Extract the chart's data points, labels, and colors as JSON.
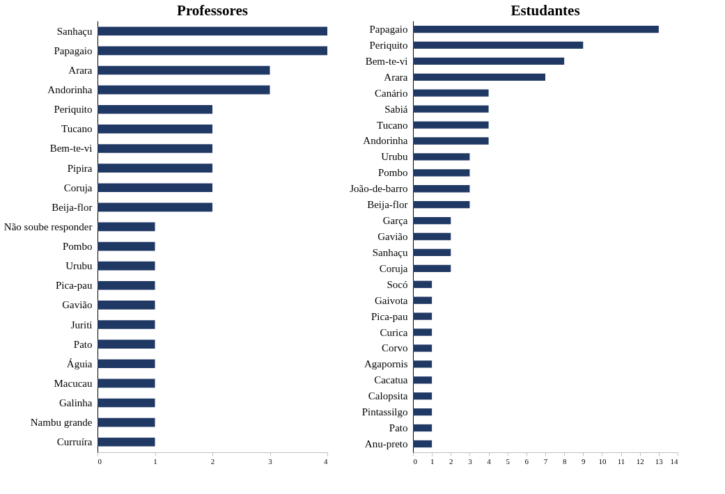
{
  "chart_data": [
    {
      "type": "bar",
      "orientation": "horizontal",
      "title": "Professores",
      "categories": [
        "Sanhaçu",
        "Papagaio",
        "Arara",
        "Andorinha",
        "Periquito",
        "Tucano",
        "Bem-te-vi",
        "Pipira",
        "Coruja",
        "Beija-flor",
        "Não soube responder",
        "Pombo",
        "Urubu",
        "Pica-pau",
        "Gavião",
        "Juriti",
        "Pato",
        "Águia",
        "Macucau",
        "Galinha",
        "Nambu grande",
        "Curruíra"
      ],
      "values": [
        4,
        4,
        3,
        3,
        2,
        2,
        2,
        2,
        2,
        2,
        1,
        1,
        1,
        1,
        1,
        1,
        1,
        1,
        1,
        1,
        1,
        1
      ],
      "color": "#203864",
      "xlim": [
        0,
        4
      ],
      "xticks": [
        0,
        1,
        2,
        3,
        4
      ],
      "grid": false
    },
    {
      "type": "bar",
      "orientation": "horizontal",
      "title": "Estudantes",
      "categories": [
        "Papagaio",
        "Periquito",
        "Bem-te-vi",
        "Arara",
        "Canário",
        "Sabiá",
        "Tucano",
        "Andorinha",
        "Urubu",
        "Pombo",
        "João-de-barro",
        "Beija-flor",
        "Garça",
        "Gavião",
        "Sanhaçu",
        "Coruja",
        "Socó",
        "Gaivota",
        "Pica-pau",
        "Curica",
        "Corvo",
        "Agapornis",
        "Cacatua",
        "Calopsita",
        "Pintassilgo",
        "Pato",
        "Anu-preto"
      ],
      "values": [
        13,
        9,
        8,
        7,
        4,
        4,
        4,
        4,
        3,
        3,
        3,
        3,
        2,
        2,
        2,
        2,
        1,
        1,
        1,
        1,
        1,
        1,
        1,
        1,
        1,
        1,
        1
      ],
      "color": "#203864",
      "xlim": [
        0,
        14
      ],
      "xticks": [
        0,
        1,
        2,
        3,
        4,
        5,
        6,
        7,
        8,
        9,
        10,
        11,
        12,
        13,
        14
      ],
      "grid": false
    }
  ]
}
